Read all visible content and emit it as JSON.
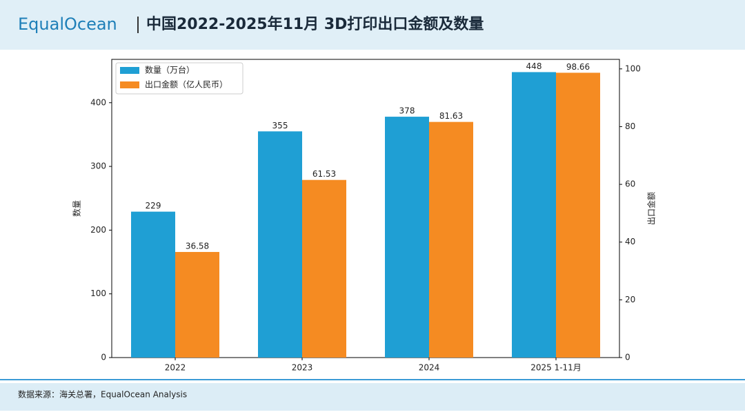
{
  "header": {
    "logo": "EqualOcean",
    "title": "中国2022-2025年11月 3D打印出口金额及数量"
  },
  "chart_data": {
    "type": "bar",
    "categories": [
      "2022",
      "2023",
      "2024",
      "2025 1-11月"
    ],
    "series": [
      {
        "name": "数量（万台）",
        "color": "#1f9fd4",
        "values": [
          229,
          355,
          378,
          448
        ]
      },
      {
        "name": "出口金额（亿人民币）",
        "color": "#f58b22",
        "values": [
          36.58,
          61.53,
          81.63,
          98.66
        ],
        "axis": "y2"
      }
    ],
    "ylabel": "数量",
    "y2label": "出口金额",
    "ylim": [
      0,
      468
    ],
    "yticks": [
      0,
      100,
      200,
      300,
      400
    ],
    "y2lim": [
      0,
      103.3
    ],
    "y2ticks": [
      0,
      20,
      40,
      60,
      80,
      100
    ],
    "legend": "upper left"
  },
  "footer": {
    "source": "数据来源：海关总署，EqualOcean Analysis"
  }
}
